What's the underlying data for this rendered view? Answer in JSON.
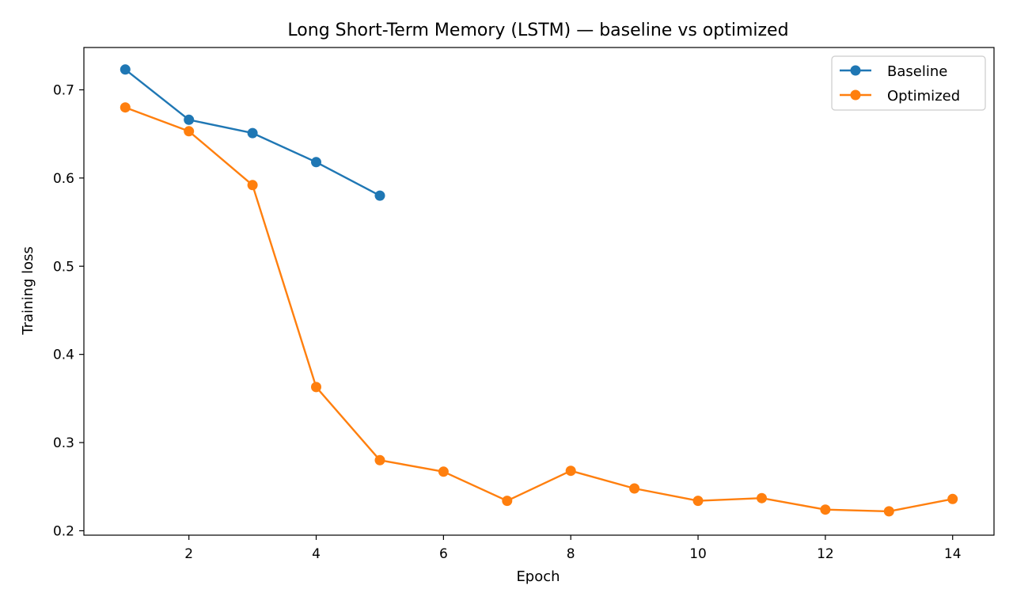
{
  "chart_data": {
    "type": "line",
    "title": "Long Short-Term Memory (LSTM) — baseline vs optimized",
    "xlabel": "Epoch",
    "ylabel": "Training loss",
    "xlim": [
      0.35,
      14.65
    ],
    "ylim": [
      0.195,
      0.748
    ],
    "xticks": [
      2,
      4,
      6,
      8,
      10,
      12,
      14
    ],
    "yticks": [
      0.2,
      0.3,
      0.4,
      0.5,
      0.6,
      0.7
    ],
    "grid": false,
    "legend_position": "top-right",
    "series": [
      {
        "name": "Baseline",
        "color": "#1f77b4",
        "x": [
          1,
          2,
          3,
          4,
          5
        ],
        "y": [
          0.723,
          0.666,
          0.651,
          0.618,
          0.58
        ]
      },
      {
        "name": "Optimized",
        "color": "#ff7f0e",
        "x": [
          1,
          2,
          3,
          4,
          5,
          6,
          7,
          8,
          9,
          10,
          11,
          12,
          13,
          14
        ],
        "y": [
          0.68,
          0.653,
          0.592,
          0.363,
          0.28,
          0.267,
          0.234,
          0.268,
          0.248,
          0.234,
          0.237,
          0.224,
          0.222,
          0.236
        ]
      }
    ]
  }
}
